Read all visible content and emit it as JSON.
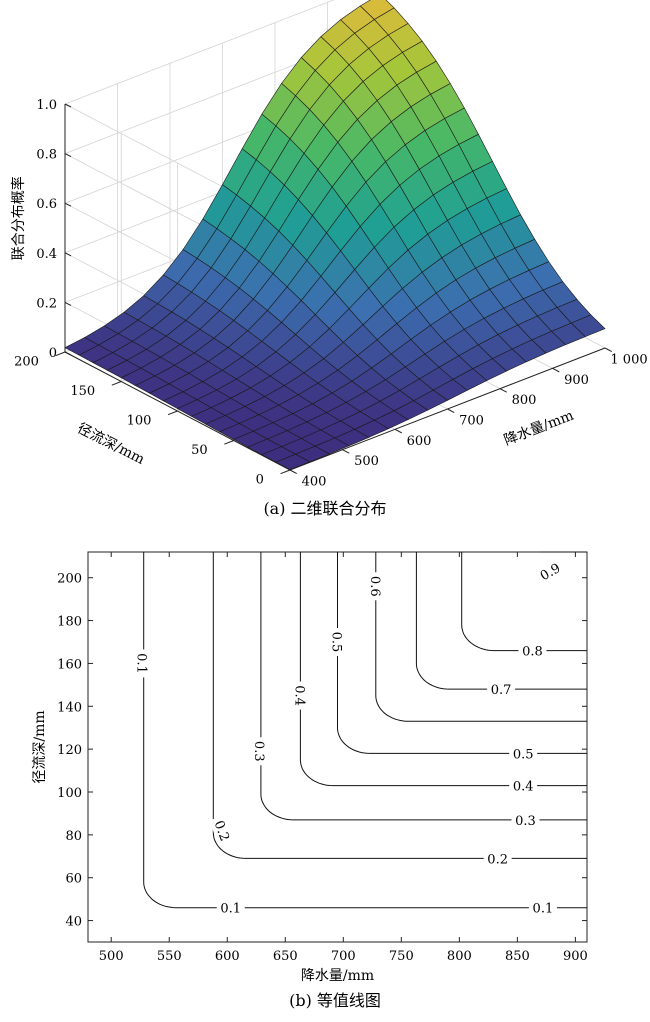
{
  "chart_data": [
    {
      "id": "surface",
      "type": "surface3d",
      "caption": "(a) 二维联合分布",
      "xlabel": "降水量/mm",
      "ylabel": "径流深/mm",
      "zlabel": "联合分布概率",
      "x_ticks": [
        "400",
        "500",
        "600",
        "700",
        "800",
        "900",
        "1 000"
      ],
      "y_ticks": [
        "0",
        "50",
        "100",
        "150",
        "200"
      ],
      "z_ticks": [
        "0",
        "0.2",
        "0.4",
        "0.6",
        "0.8",
        "1.0"
      ],
      "xlim": [
        400,
        1000
      ],
      "ylim": [
        0,
        200
      ],
      "zlim": [
        0,
        1
      ],
      "grid": true,
      "colormap": [
        "#3e2d7e",
        "#3c6fb0",
        "#1f9f95",
        "#48b867",
        "#a6c63a",
        "#f2b53b"
      ]
    },
    {
      "id": "contour",
      "type": "contour",
      "caption": "(b) 等值线图",
      "xlabel": "降水量/mm",
      "ylabel": "径流深/mm",
      "xlim": [
        480,
        910
      ],
      "ylim": [
        30,
        212
      ],
      "x_ticks": [
        500,
        550,
        600,
        650,
        700,
        750,
        800,
        850,
        900
      ],
      "y_ticks": [
        40,
        60,
        80,
        100,
        120,
        140,
        160,
        180,
        200
      ],
      "levels": [
        {
          "level": "0.1",
          "x_asym": 528,
          "y_asym": 46,
          "labels": [
            {
              "text": "0.1",
              "x": 527,
              "y": 160,
              "rot": 90
            },
            {
              "text": "0.1",
              "x": 603,
              "y": 46,
              "rot": 0
            },
            {
              "text": "0.1",
              "x": 872,
              "y": 46,
              "rot": 0
            }
          ]
        },
        {
          "level": "0.2",
          "x_asym": 588,
          "y_asym": 69,
          "labels": [
            {
              "text": "0.2",
              "x": 596,
              "y": 82,
              "rot": 70
            },
            {
              "text": "0.2",
              "x": 833,
              "y": 69,
              "rot": 0
            }
          ]
        },
        {
          "level": "0.3",
          "x_asym": 629,
          "y_asym": 87,
          "labels": [
            {
              "text": "0.3",
              "x": 628,
              "y": 119,
              "rot": 90
            },
            {
              "text": "0.3",
              "x": 857,
              "y": 87,
              "rot": 0
            }
          ]
        },
        {
          "level": "0.4",
          "x_asym": 663,
          "y_asym": 103,
          "labels": [
            {
              "text": "0.4",
              "x": 663,
              "y": 145,
              "rot": 90
            },
            {
              "text": "0.4",
              "x": 855,
              "y": 103,
              "rot": 0
            }
          ]
        },
        {
          "level": "0.5",
          "x_asym": 695,
          "y_asym": 118,
          "labels": [
            {
              "text": "0.5",
              "x": 695,
              "y": 170,
              "rot": 90
            },
            {
              "text": "0.5",
              "x": 855,
              "y": 118,
              "rot": 0
            }
          ]
        },
        {
          "level": "0.6",
          "x_asym": 728,
          "y_asym": 133,
          "labels": [
            {
              "text": "0.6",
              "x": 728,
              "y": 196,
              "rot": 90
            }
          ]
        },
        {
          "level": "0.7",
          "x_asym": 763,
          "y_asym": 148,
          "labels": [
            {
              "text": "0.7",
              "x": 836,
              "y": 148,
              "rot": 0
            }
          ]
        },
        {
          "level": "0.8",
          "x_asym": 802,
          "y_asym": 166,
          "labels": [
            {
              "text": "0.8",
              "x": 863,
              "y": 166,
              "rot": 0
            }
          ]
        },
        {
          "level": "0.9",
          "x_asym": 870,
          "y_asym": 212,
          "labels": [
            {
              "text": "0.9",
              "x": 878,
              "y": 203,
              "rot": -30
            }
          ]
        }
      ]
    }
  ]
}
